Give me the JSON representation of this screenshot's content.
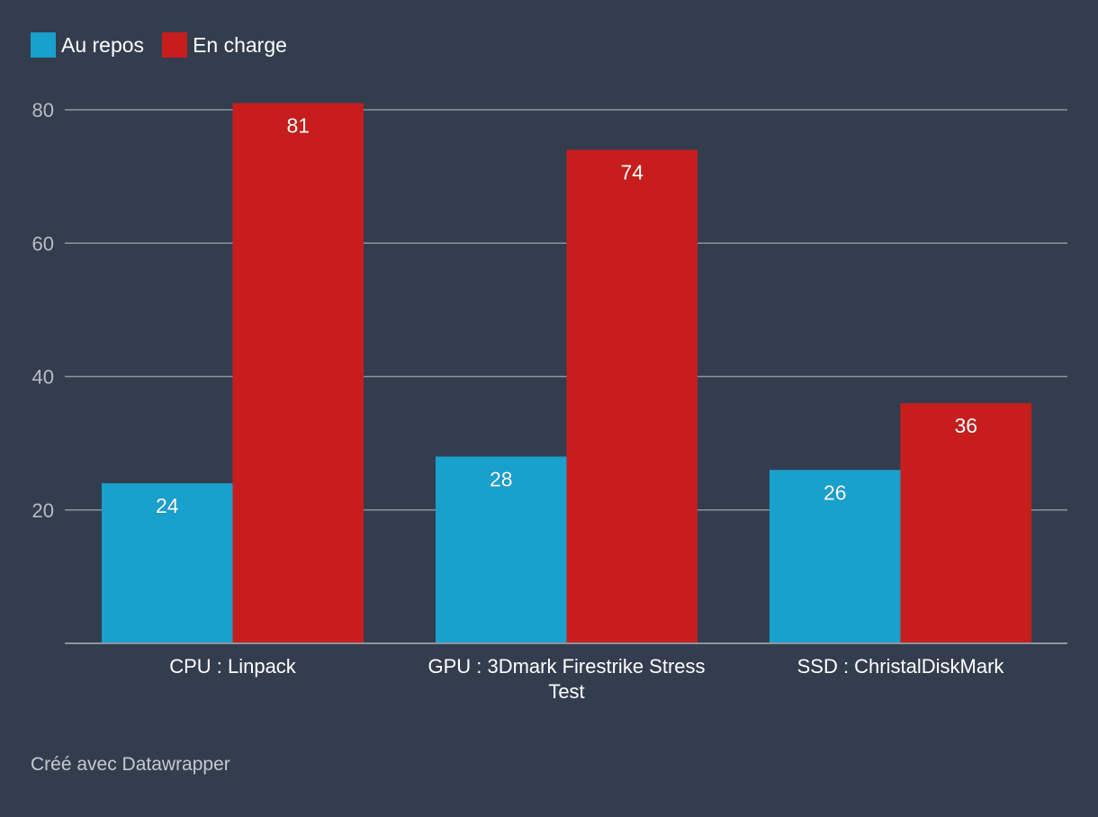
{
  "colors": {
    "background": "#333d4e",
    "gridline": "#8e949c",
    "axis_text": "#b8bcc3",
    "label_text": "#ffffff"
  },
  "legend": {
    "items": [
      {
        "label": "Au repos",
        "color": "#18a1cd"
      },
      {
        "label": "En charge",
        "color": "#c71e1d"
      }
    ]
  },
  "chart_data": {
    "type": "bar",
    "categories": [
      "CPU : Linpack",
      "GPU : 3Dmark Firestrike Stress Test",
      "SSD : ChristalDiskMark"
    ],
    "category_lines": [
      [
        "CPU : Linpack"
      ],
      [
        "GPU : 3Dmark Firestrike Stress",
        "Test"
      ],
      [
        "SSD : ChristalDiskMark"
      ]
    ],
    "series": [
      {
        "name": "Au repos",
        "values": [
          24,
          28,
          26
        ],
        "color": "#18a1cd"
      },
      {
        "name": "En charge",
        "values": [
          81,
          74,
          36
        ],
        "color": "#c71e1d"
      }
    ],
    "y_ticks": [
      20,
      40,
      60,
      80
    ],
    "ylim": [
      0,
      80
    ],
    "grid": true,
    "legend_position": "top-left"
  },
  "footer": {
    "credit": "Créé avec Datawrapper"
  }
}
